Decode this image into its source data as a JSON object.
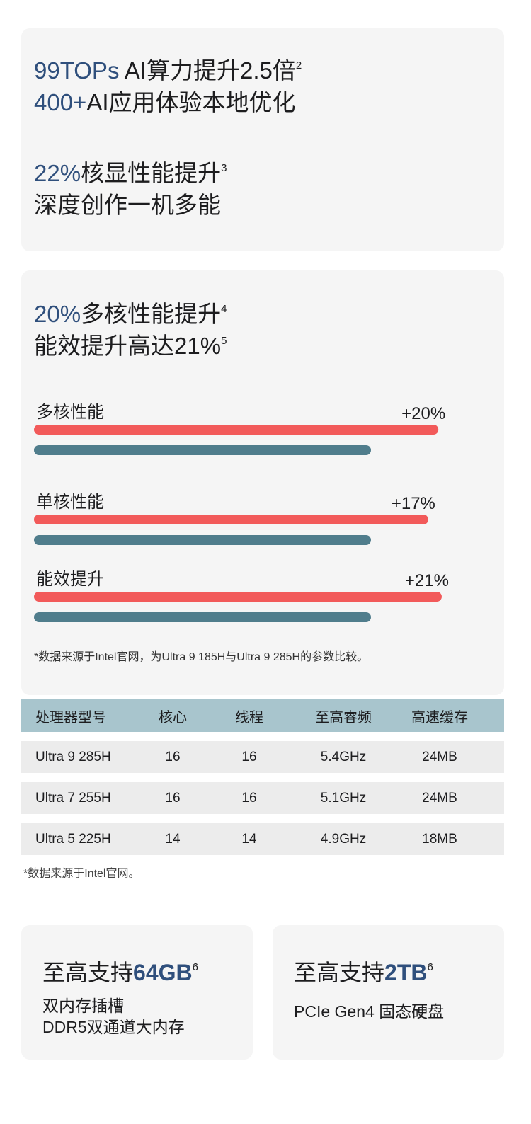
{
  "card_ai": {
    "line1_accent": "99TOPs",
    "line1_rest": " AI算力提升2.5倍",
    "line1_sup": "2",
    "line2_accent": "400+",
    "line2_rest": "AI应用体验本地优化",
    "line3_accent": "22%",
    "line3_rest": "核显性能提升",
    "line3_sup": "3",
    "line4": "深度创作一机多能"
  },
  "card_perf": {
    "head1_accent": "20%",
    "head1_rest": "多核性能提升",
    "head1_sup": "4",
    "head2_text": "能效提升高达21%",
    "head2_sup": "5",
    "note": "*数据来源于Intel官网，为Ultra 9 185H与Ultra 9 285H的参数比较。"
  },
  "chart_data": {
    "type": "bar",
    "orientation": "horizontal",
    "categories": [
      "多核性能",
      "单核性能",
      "能效提升"
    ],
    "series": [
      {
        "color": "#f25a5a",
        "values": [
          120,
          117,
          121
        ]
      },
      {
        "color": "#507d8c",
        "values": [
          100,
          100,
          100
        ]
      }
    ],
    "value_labels": [
      "+20%",
      "+17%",
      "+21%"
    ]
  },
  "table": {
    "headers": [
      "处理器型号",
      "核心",
      "线程",
      "至高睿频",
      "高速缓存"
    ],
    "rows": [
      [
        "Ultra 9 285H",
        "16",
        "16",
        "5.4GHz",
        "24MB"
      ],
      [
        "Ultra 7 255H",
        "16",
        "16",
        "5.1GHz",
        "24MB"
      ],
      [
        "Ultra 5 225H",
        "14",
        "14",
        "4.9GHz",
        "18MB"
      ]
    ],
    "header_bg": "#a8c5cd",
    "note": "*数据来源于Intel官网。"
  },
  "memory": {
    "title_prefix": "至高支持",
    "title_accent": "64GB",
    "sup": "6",
    "line1": "双内存插槽",
    "line2": "DDR5双通道大内存"
  },
  "storage": {
    "title_prefix": "至高支持",
    "title_accent": "2TB",
    "sup": "6",
    "line1": "PCIe Gen4 固态硬盘"
  },
  "colors": {
    "accent": "#2f4f7c",
    "bar_new": "#f25a5a",
    "bar_old": "#507d8c",
    "card_bg": "#f5f5f5"
  }
}
